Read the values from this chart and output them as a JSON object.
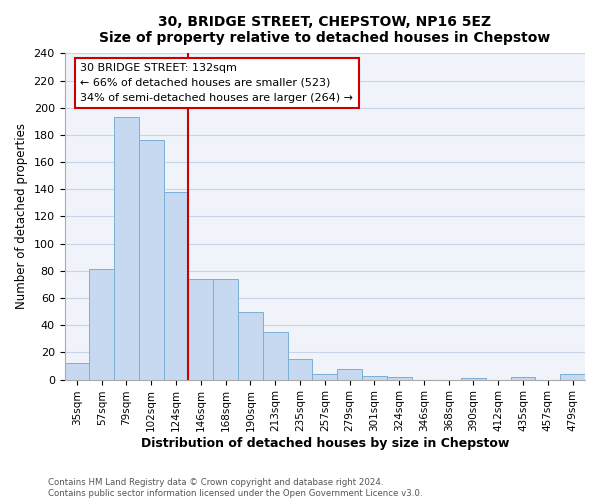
{
  "title": "30, BRIDGE STREET, CHEPSTOW, NP16 5EZ",
  "subtitle": "Size of property relative to detached houses in Chepstow",
  "xlabel": "Distribution of detached houses by size in Chepstow",
  "ylabel": "Number of detached properties",
  "bar_labels": [
    "35sqm",
    "57sqm",
    "79sqm",
    "102sqm",
    "124sqm",
    "146sqm",
    "168sqm",
    "190sqm",
    "213sqm",
    "235sqm",
    "257sqm",
    "279sqm",
    "301sqm",
    "324sqm",
    "346sqm",
    "368sqm",
    "390sqm",
    "412sqm",
    "435sqm",
    "457sqm",
    "479sqm"
  ],
  "bar_values": [
    12,
    81,
    193,
    176,
    138,
    74,
    74,
    50,
    35,
    15,
    4,
    8,
    3,
    2,
    0,
    0,
    1,
    0,
    2,
    0,
    4
  ],
  "bar_color": "#c6d9f0",
  "bar_edge_color": "#7bafd4",
  "ylim": [
    0,
    240
  ],
  "yticks": [
    0,
    20,
    40,
    60,
    80,
    100,
    120,
    140,
    160,
    180,
    200,
    220,
    240
  ],
  "vline_x": 4.5,
  "vline_color": "#cc0000",
  "annotation_title": "30 BRIDGE STREET: 132sqm",
  "annotation_line1": "← 66% of detached houses are smaller (523)",
  "annotation_line2": "34% of semi-detached houses are larger (264) →",
  "annotation_box_color": "#ffffff",
  "annotation_box_edge": "#cc0000",
  "footer_line1": "Contains HM Land Registry data © Crown copyright and database right 2024.",
  "footer_line2": "Contains public sector information licensed under the Open Government Licence v3.0.",
  "bg_color": "#f0f4fa",
  "grid_color": "#c8d4e8"
}
